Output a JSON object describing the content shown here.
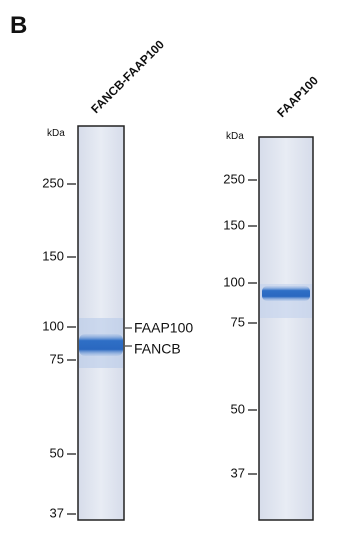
{
  "panel_label": "B",
  "lanes": [
    {
      "label": "FANCB-FAAP100",
      "unit": "kDa",
      "markers": [
        250,
        150,
        100,
        75,
        50,
        37
      ],
      "bands": [
        "FAAP100",
        "FANCB"
      ]
    },
    {
      "label": "FAAP100",
      "unit": "kDa",
      "markers": [
        250,
        150,
        100,
        75,
        50,
        37
      ]
    }
  ]
}
